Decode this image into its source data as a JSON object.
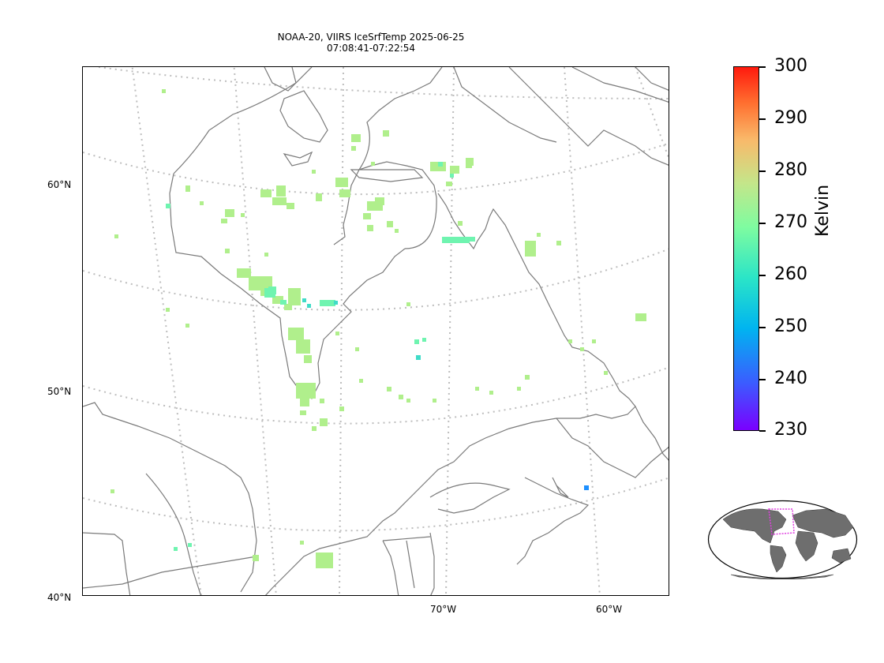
{
  "title_line1": "NOAA-20, VIIRS IceSrfTemp 2025-06-25",
  "title_line2": "07:08:41-07:22:54",
  "lat_labels": [
    "60°N",
    "50°N",
    "40°N"
  ],
  "lon_labels": [
    "70°W",
    "60°W"
  ],
  "colorbar": {
    "title": "Kelvin",
    "ticks": [
      "300",
      "290",
      "280",
      "270",
      "260",
      "250",
      "240",
      "230"
    ],
    "min": 230,
    "max": 300
  },
  "colors": {
    "coastline": "#7a7a7a",
    "graticule": "#bdbdbd",
    "land_inset": "#6e6e6e",
    "inset_box": "#e040e0"
  }
}
